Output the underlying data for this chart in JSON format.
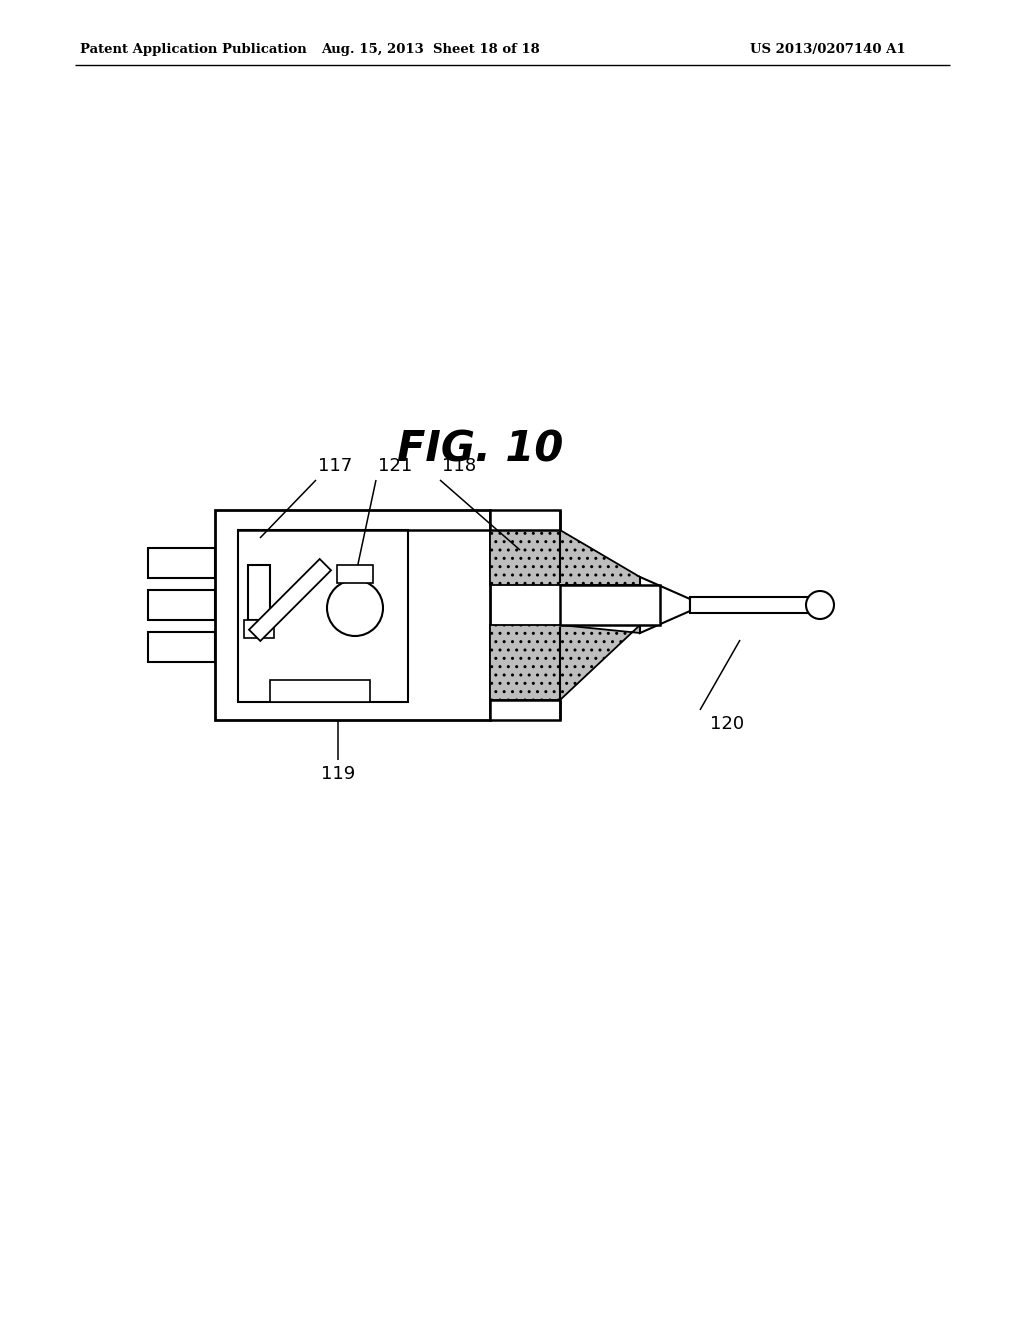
{
  "header_left": "Patent Application Publication",
  "header_mid": "Aug. 15, 2013  Sheet 18 of 18",
  "header_right": "US 2013/0207140 A1",
  "fig_title": "FIG. 10",
  "bg_color": "#ffffff",
  "dot_color": "#bebebe",
  "line_color": "#000000"
}
